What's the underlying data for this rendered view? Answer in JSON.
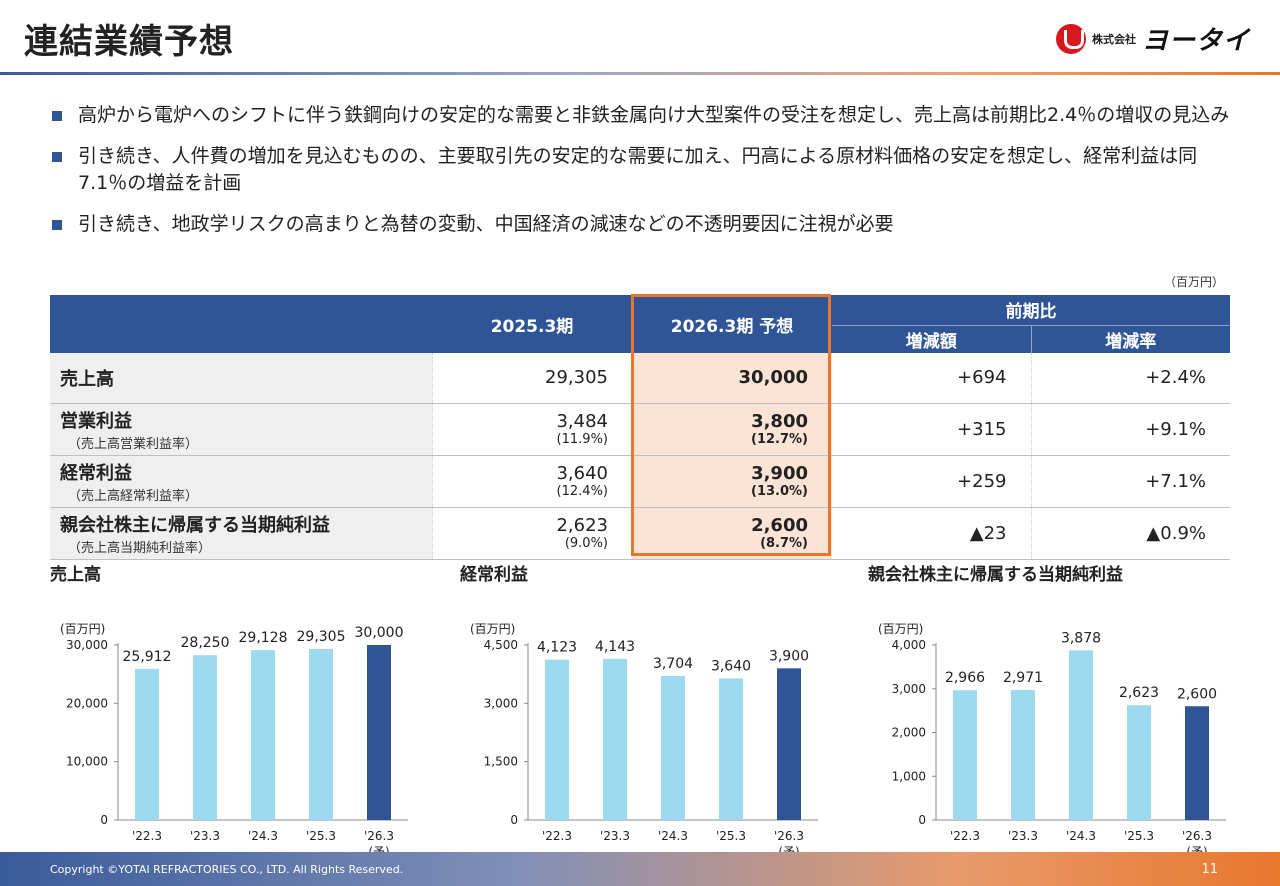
{
  "title": "連結業績予想",
  "logo": {
    "small": "株式会社",
    "big": "ヨータイ"
  },
  "bullets": [
    "高炉から電炉へのシフトに伴う鉄鋼向けの安定的な需要と非鉄金属向け大型案件の受注を想定し、売上高は前期比2.4％の増収の見込み",
    "引き続き、人件費の増加を見込むものの、主要取引先の安定的な需要に加え、円高による原材料価格の安定を想定し、経常利益は同7.1％の増益を計画",
    "引き続き、地政学リスクの高まりと為替の変動、中国経済の減速などの不透明要因に注視が必要"
  ],
  "unit_note": "（百万円）",
  "table": {
    "col_prev": "2025.3期",
    "col_fcst": "2026.3期 予想",
    "col_yoy": "前期比",
    "col_diff": "増減額",
    "col_rate": "増減率",
    "rows": [
      {
        "label": "売上高",
        "sub": "",
        "prev": "29,305",
        "prev_sub": "",
        "fcst": "30,000",
        "fcst_sub": "",
        "diff": "+694",
        "rate": "+2.4%"
      },
      {
        "label": "営業利益",
        "sub": "（売上高営業利益率）",
        "prev": "3,484",
        "prev_sub": "(11.9%)",
        "fcst": "3,800",
        "fcst_sub": "(12.7%)",
        "diff": "+315",
        "rate": "+9.1%"
      },
      {
        "label": "経常利益",
        "sub": "（売上高経常利益率）",
        "prev": "3,640",
        "prev_sub": "(12.4%)",
        "fcst": "3,900",
        "fcst_sub": "(13.0%)",
        "diff": "+259",
        "rate": "+7.1%"
      },
      {
        "label": "親会社株主に帰属する当期純利益",
        "sub": "（売上高当期純利益率）",
        "prev": "2,623",
        "prev_sub": "(9.0%)",
        "fcst": "2,600",
        "fcst_sub": "(8.7%)",
        "diff": "▲23",
        "rate": "▲0.9%"
      }
    ]
  },
  "colors": {
    "bar_actual": "#9dd9ef",
    "bar_forecast": "#2f5597",
    "header": "#2f5597",
    "forecast_bg": "#fbe3d6",
    "forecast_frame": "#e8772e"
  },
  "chart_data": [
    {
      "type": "bar",
      "title": "売上高",
      "ylabel": "(百万円)",
      "categories": [
        "'22.3",
        "'23.3",
        "'24.3",
        "'25.3",
        "'26.3"
      ],
      "forecast_mark": "(予)",
      "values": [
        25912,
        28250,
        29128,
        29305,
        30000
      ],
      "value_labels": [
        "25,912",
        "28,250",
        "29,128",
        "29,305",
        "30,000"
      ],
      "ylim": [
        0,
        30000
      ],
      "yticks": [
        0,
        10000,
        20000,
        30000
      ],
      "ytick_labels": [
        "0",
        "10,000",
        "20,000",
        "30,000"
      ],
      "forecast_index": 4
    },
    {
      "type": "bar",
      "title": "経常利益",
      "ylabel": "(百万円)",
      "categories": [
        "'22.3",
        "'23.3",
        "'24.3",
        "'25.3",
        "'26.3"
      ],
      "forecast_mark": "(予)",
      "values": [
        4123,
        4143,
        3704,
        3640,
        3900
      ],
      "value_labels": [
        "4,123",
        "4,143",
        "3,704",
        "3,640",
        "3,900"
      ],
      "ylim": [
        0,
        4500
      ],
      "yticks": [
        0,
        1500,
        3000,
        4500
      ],
      "ytick_labels": [
        "0",
        "1,500",
        "3,000",
        "4,500"
      ],
      "forecast_index": 4
    },
    {
      "type": "bar",
      "title": "親会社株主に帰属する当期純利益",
      "ylabel": "(百万円)",
      "categories": [
        "'22.3",
        "'23.3",
        "'24.3",
        "'25.3",
        "'26.3"
      ],
      "forecast_mark": "(予)",
      "values": [
        2966,
        2971,
        3878,
        2623,
        2600
      ],
      "value_labels": [
        "2,966",
        "2,971",
        "3,878",
        "2,623",
        "2,600"
      ],
      "ylim": [
        0,
        4000
      ],
      "yticks": [
        0,
        1000,
        2000,
        3000,
        4000
      ],
      "ytick_labels": [
        "0",
        "1,000",
        "2,000",
        "3,000",
        "4,000"
      ],
      "forecast_index": 4
    }
  ],
  "footer": {
    "copyright": "Copyright ©YOTAI REFRACTORIES CO., LTD. All Rights Reserved.",
    "page": "11"
  }
}
